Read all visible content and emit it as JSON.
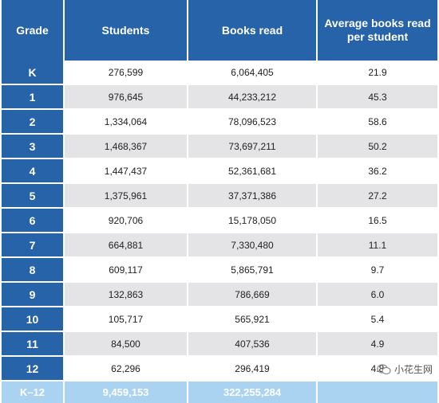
{
  "columns": [
    "Grade",
    "Students",
    "Books read",
    "Average books read per student"
  ],
  "rows": [
    [
      "K",
      "276,599",
      "6,064,405",
      "21.9"
    ],
    [
      "1",
      "976,645",
      "44,233,212",
      "45.3"
    ],
    [
      "2",
      "1,334,064",
      "78,096,523",
      "58.6"
    ],
    [
      "3",
      "1,468,367",
      "73,697,211",
      "50.2"
    ],
    [
      "4",
      "1,447,437",
      "52,361,681",
      "36.2"
    ],
    [
      "5",
      "1,375,961",
      "37,371,386",
      "27.2"
    ],
    [
      "6",
      "920,706",
      "15,178,050",
      "16.5"
    ],
    [
      "7",
      "664,881",
      "7,330,480",
      "11.1"
    ],
    [
      "8",
      "609,117",
      "5,865,791",
      "9.7"
    ],
    [
      "9",
      "132,863",
      "786,669",
      "6.0"
    ],
    [
      "10",
      "105,717",
      "565,921",
      "5.4"
    ],
    [
      "11",
      "84,500",
      "407,536",
      "4.9"
    ],
    [
      "12",
      "62,296",
      "296,419",
      "4.8"
    ]
  ],
  "total": [
    "K–12",
    "9,459,153",
    "322,255,284",
    ""
  ],
  "watermark": {
    "text": "小花生网",
    "icon": "wechat-icon"
  },
  "colors": {
    "header": "#2763a8",
    "total_row": "#a9d3f0",
    "alt_row": "#e4e4e6"
  }
}
